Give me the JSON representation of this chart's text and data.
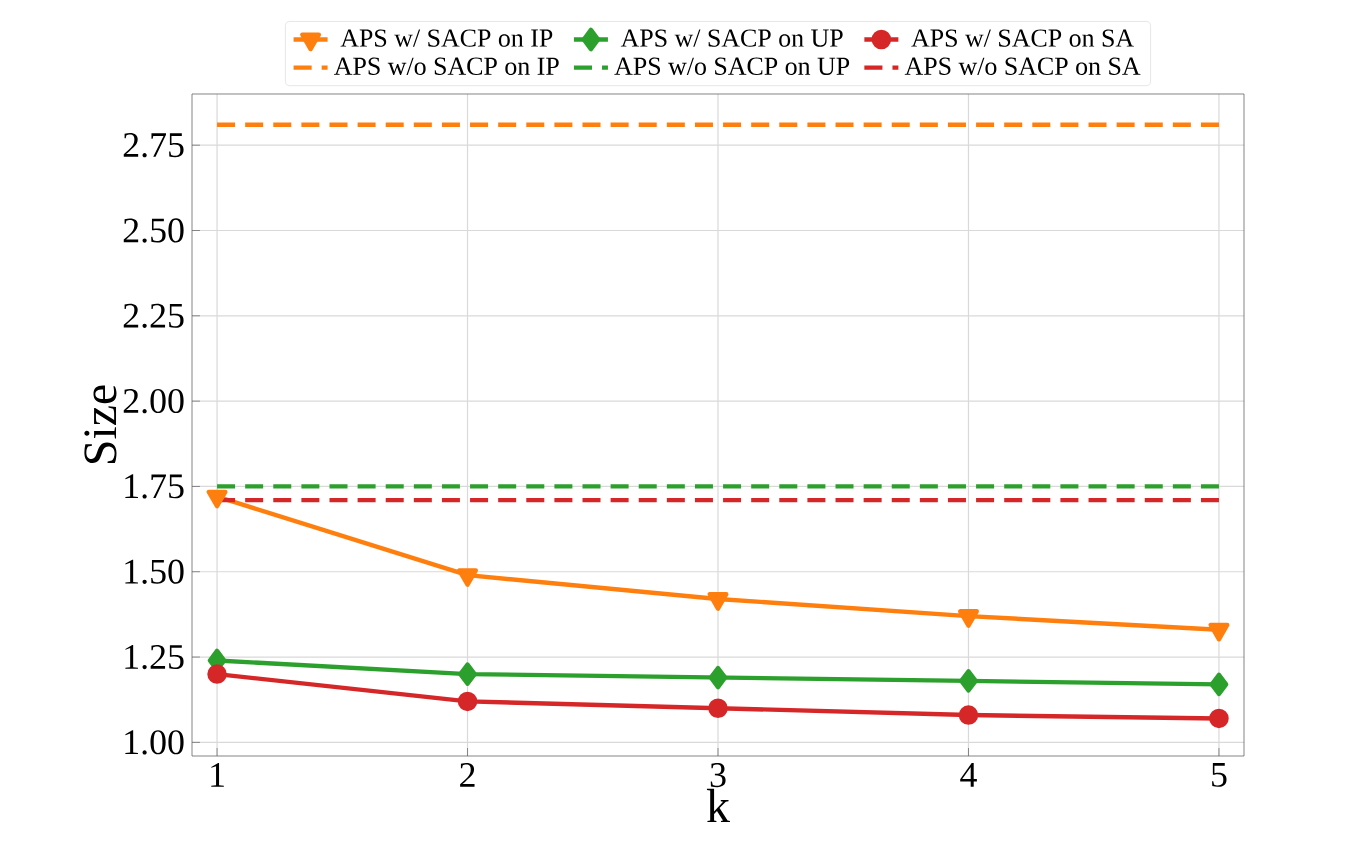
{
  "chart_data": {
    "type": "line",
    "xlabel": "k",
    "ylabel": "Size",
    "x": [
      1,
      2,
      3,
      4,
      5
    ],
    "series": [
      {
        "name": "APS w/   SACP on IP",
        "color": "#ff7f0e",
        "marker": "triangle",
        "line_style": "solid",
        "values": [
          1.72,
          1.49,
          1.42,
          1.37,
          1.33
        ]
      },
      {
        "name": "APS w/o SACP on IP",
        "color": "#ff7f0e",
        "marker": "none",
        "line_style": "dashed",
        "values": [
          2.81,
          2.81,
          2.81,
          2.81,
          2.81
        ]
      },
      {
        "name": "APS w/   SACP on UP",
        "color": "#2ca02c",
        "marker": "diamond",
        "line_style": "solid",
        "values": [
          1.24,
          1.2,
          1.19,
          1.18,
          1.17
        ]
      },
      {
        "name": "APS w/o SACP on UP",
        "color": "#2ca02c",
        "marker": "none",
        "line_style": "dashed",
        "values": [
          1.75,
          1.75,
          1.75,
          1.75,
          1.75
        ]
      },
      {
        "name": "APS w/   SACP on SA",
        "color": "#d62728",
        "marker": "circle",
        "line_style": "solid",
        "values": [
          1.2,
          1.12,
          1.1,
          1.08,
          1.07
        ]
      },
      {
        "name": "APS w/o SACP on SA",
        "color": "#d62728",
        "marker": "none",
        "line_style": "dashed",
        "values": [
          1.71,
          1.71,
          1.71,
          1.71,
          1.71
        ]
      }
    ],
    "xlim": [
      0.9,
      5.1
    ],
    "ylim": [
      0.96,
      2.9
    ],
    "xticks": [
      1,
      2,
      3,
      4,
      5
    ],
    "yticks": [
      {
        "value": 1.0,
        "label": "1.00"
      },
      {
        "value": 1.25,
        "label": "1.25"
      },
      {
        "value": 1.5,
        "label": "1.50"
      },
      {
        "value": 1.75,
        "label": "1.75"
      },
      {
        "value": 2.0,
        "label": "2.00"
      },
      {
        "value": 2.25,
        "label": "2.25"
      },
      {
        "value": 2.5,
        "label": "2.50"
      },
      {
        "value": 2.75,
        "label": "2.75"
      }
    ],
    "grid": true,
    "legend": "top"
  }
}
